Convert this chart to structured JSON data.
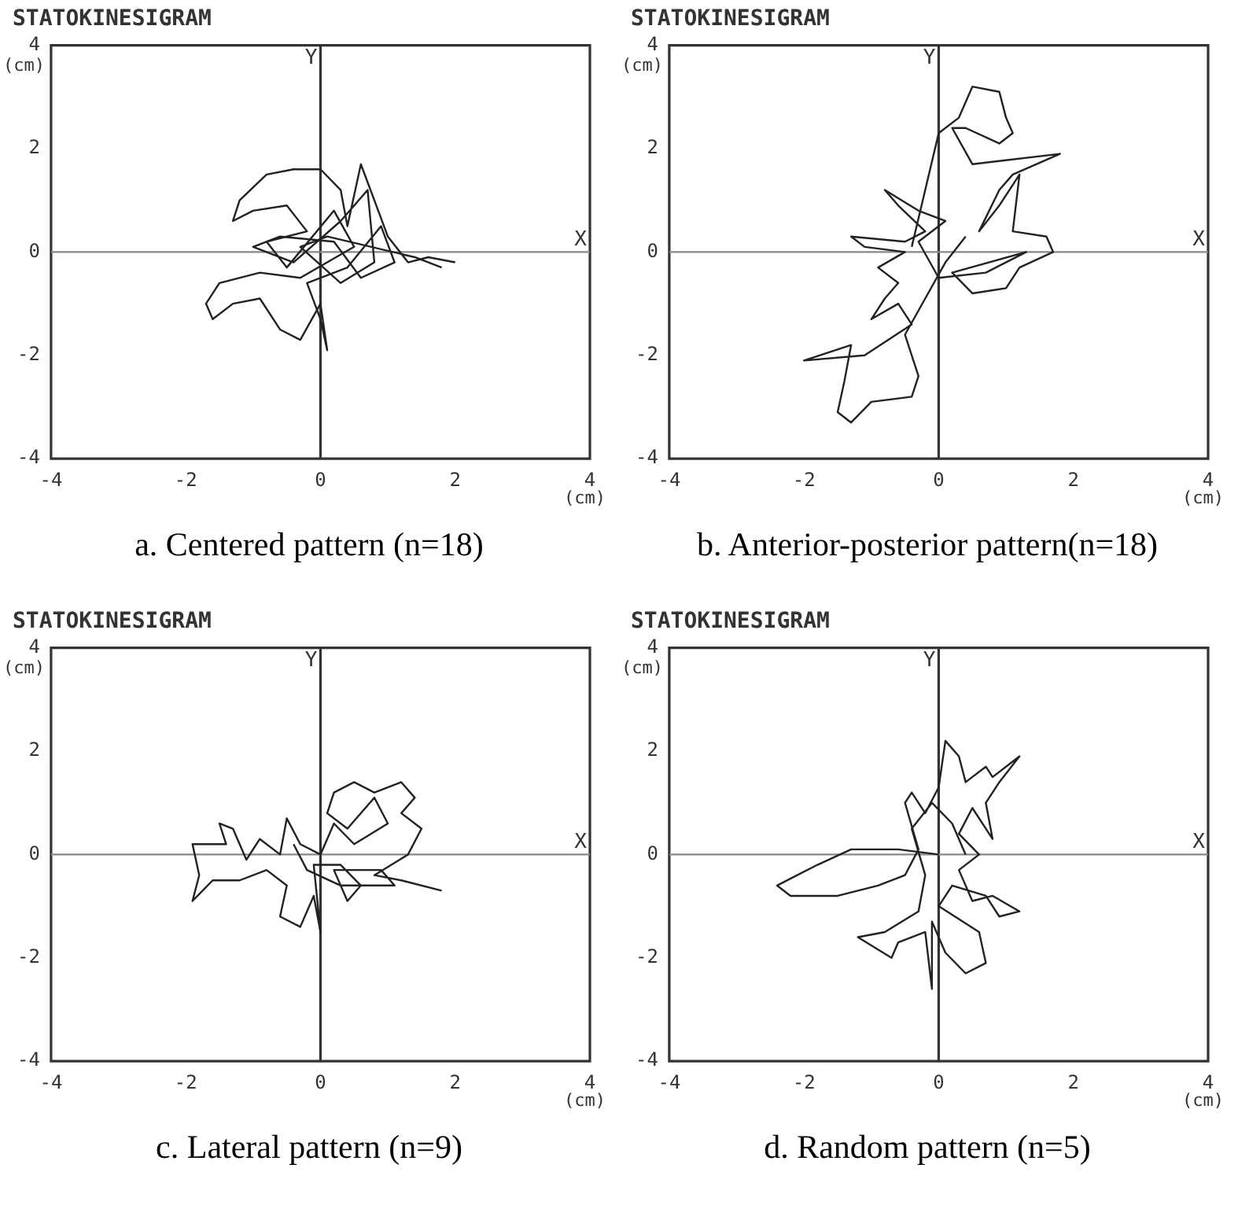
{
  "chart_data": [
    {
      "type": "line",
      "title": "STATOKINESIGRAM",
      "xlabel": "(cm)",
      "ylabel": "(cm)",
      "xlim": [
        -4,
        4
      ],
      "ylim": [
        -4,
        4
      ],
      "xticks": [
        -4,
        -2,
        0,
        2,
        4
      ],
      "yticks": [
        -4,
        -2,
        0,
        2,
        4
      ],
      "marker": "none",
      "legend": false,
      "ref_lines": [
        {
          "axis": "x",
          "value": 0,
          "label": "Y"
        },
        {
          "axis": "y",
          "value": 0,
          "label": "X"
        }
      ],
      "annotations": [
        "a. Centered pattern (n=18)"
      ],
      "series": [
        {
          "color": "#222222",
          "x": [
            2.0,
            1.6,
            1.3,
            1.0,
            0.6,
            0.4,
            0.3,
            0.0,
            -0.4,
            -0.8,
            -1.2,
            -1.3,
            -1.0,
            -0.5,
            -0.2,
            -0.8,
            -0.5,
            0.2,
            0.5,
            -0.3,
            -0.9,
            -1.5,
            -1.7,
            -1.6,
            -1.3,
            -0.9,
            -0.6,
            -0.3,
            0.0,
            0.1,
            0.0,
            -0.2,
            0.4,
            0.9,
            1.1,
            0.6,
            0.2,
            -0.6,
            -1.0,
            -0.4,
            0.3,
            0.7,
            0.8,
            0.3,
            -0.3,
            0.1,
            1.4,
            1.8
          ],
          "values": [
            -0.2,
            -0.1,
            -0.2,
            0.3,
            1.7,
            0.5,
            1.2,
            1.6,
            1.6,
            1.5,
            1.0,
            0.6,
            0.8,
            0.9,
            0.4,
            0.2,
            -0.3,
            0.8,
            0.1,
            -0.5,
            -0.4,
            -0.6,
            -1.0,
            -1.3,
            -1.0,
            -0.9,
            -1.5,
            -1.7,
            -1.0,
            -1.9,
            -1.3,
            -0.6,
            -0.3,
            0.5,
            -0.2,
            -0.5,
            0.2,
            0.3,
            0.1,
            -0.2,
            0.6,
            1.2,
            -0.2,
            -0.6,
            0.1,
            0.3,
            -0.1,
            -0.3
          ]
        }
      ]
    },
    {
      "type": "line",
      "title": "STATOKINESIGRAM",
      "xlabel": "(cm)",
      "ylabel": "(cm)",
      "xlim": [
        -4,
        4
      ],
      "ylim": [
        -4,
        4
      ],
      "xticks": [
        -4,
        -2,
        0,
        2,
        4
      ],
      "yticks": [
        -4,
        -2,
        0,
        2,
        4
      ],
      "marker": "none",
      "legend": false,
      "ref_lines": [
        {
          "axis": "x",
          "value": 0,
          "label": "Y"
        },
        {
          "axis": "y",
          "value": 0,
          "label": "X"
        }
      ],
      "annotations": [
        "b. Anterior-posterior pattern(n=18)"
      ],
      "series": [
        {
          "color": "#222222",
          "x": [
            -0.4,
            0.0,
            0.3,
            0.5,
            0.9,
            1.0,
            1.1,
            0.9,
            0.4,
            0.2,
            0.5,
            1.8,
            1.1,
            0.9,
            0.6,
            0.9,
            1.2,
            1.1,
            1.6,
            1.7,
            1.2,
            1.0,
            0.5,
            0.2,
            1.3,
            0.7,
            0.0,
            -0.3,
            0.1,
            -0.3,
            -0.8,
            -0.6,
            -0.2,
            -0.5,
            -1.3,
            -1.1,
            -0.5,
            -0.9,
            -0.6,
            -0.8,
            -1.0,
            -0.6,
            -0.4,
            -1.1,
            -2.0,
            -1.3,
            -1.4,
            -1.5,
            -1.3,
            -1.0,
            -0.4,
            -0.3,
            -0.5,
            -0.2,
            0.1,
            0.4
          ],
          "values": [
            0.1,
            2.3,
            2.6,
            3.2,
            3.1,
            2.6,
            2.3,
            2.1,
            2.4,
            2.4,
            1.7,
            1.9,
            1.5,
            1.2,
            0.4,
            0.9,
            1.5,
            0.4,
            0.3,
            0.0,
            -0.3,
            -0.7,
            -0.8,
            -0.4,
            0.0,
            -0.4,
            -0.5,
            0.2,
            0.6,
            0.8,
            1.2,
            0.9,
            0.4,
            0.2,
            0.3,
            0.1,
            0.0,
            -0.3,
            -0.6,
            -0.9,
            -1.3,
            -1.0,
            -1.4,
            -2.0,
            -2.1,
            -1.8,
            -2.5,
            -3.1,
            -3.3,
            -2.9,
            -2.8,
            -2.4,
            -1.6,
            -0.9,
            -0.2,
            0.3
          ]
        }
      ]
    },
    {
      "type": "line",
      "title": "STATOKINESIGRAM",
      "xlabel": "(cm)",
      "ylabel": "(cm)",
      "xlim": [
        -4,
        4
      ],
      "ylim": [
        -4,
        4
      ],
      "xticks": [
        -4,
        -2,
        0,
        2,
        4
      ],
      "yticks": [
        -4,
        -2,
        0,
        2,
        4
      ],
      "marker": "none",
      "legend": false,
      "ref_lines": [
        {
          "axis": "x",
          "value": 0,
          "label": "Y"
        },
        {
          "axis": "y",
          "value": 0,
          "label": "X"
        }
      ],
      "annotations": [
        "c. Lateral pattern (n=9)"
      ],
      "series": [
        {
          "color": "#222222",
          "x": [
            1.8,
            1.2,
            0.8,
            1.3,
            1.5,
            1.2,
            1.4,
            1.2,
            0.8,
            0.5,
            0.2,
            0.1,
            0.4,
            0.8,
            1.0,
            0.5,
            0.2,
            0.0,
            -0.3,
            -0.5,
            -0.6,
            -0.9,
            -1.1,
            -1.3,
            -1.5,
            -1.4,
            -1.9,
            -1.8,
            -1.9,
            -1.6,
            -1.2,
            -0.8,
            -0.5,
            -0.6,
            -0.3,
            -0.1,
            0.0,
            -0.1,
            0.3,
            0.6,
            0.4,
            0.2,
            0.9,
            1.1,
            0.3,
            -0.2,
            -0.4
          ],
          "values": [
            -0.7,
            -0.5,
            -0.4,
            0.0,
            0.5,
            0.8,
            1.1,
            1.4,
            1.2,
            1.4,
            1.2,
            0.8,
            0.5,
            1.1,
            0.6,
            0.2,
            0.6,
            0.0,
            0.2,
            0.7,
            0.0,
            0.3,
            -0.1,
            0.5,
            0.6,
            0.2,
            0.2,
            -0.4,
            -0.9,
            -0.5,
            -0.5,
            -0.3,
            -0.6,
            -1.2,
            -1.4,
            -0.8,
            -1.5,
            -0.2,
            -0.2,
            -0.6,
            -0.9,
            -0.3,
            -0.3,
            -0.6,
            -0.6,
            -0.3,
            0.2
          ]
        }
      ]
    },
    {
      "type": "line",
      "title": "STATOKINESIGRAM",
      "xlabel": "(cm)",
      "ylabel": "(cm)",
      "xlim": [
        -4,
        4
      ],
      "ylim": [
        -4,
        4
      ],
      "xticks": [
        -4,
        -2,
        0,
        2,
        4
      ],
      "yticks": [
        -4,
        -2,
        0,
        2,
        4
      ],
      "marker": "none",
      "legend": false,
      "ref_lines": [
        {
          "axis": "x",
          "value": 0,
          "label": "Y"
        },
        {
          "axis": "y",
          "value": 0,
          "label": "X"
        }
      ],
      "annotations": [
        "d. Random pattern (n=5)"
      ],
      "series": [
        {
          "color": "#222222",
          "x": [
            0.0,
            -0.6,
            -1.3,
            -1.8,
            -2.4,
            -2.2,
            -1.5,
            -0.9,
            -0.5,
            -0.3,
            -0.5,
            -0.4,
            -0.2,
            0.0,
            0.1,
            0.3,
            0.4,
            0.7,
            0.8,
            1.2,
            0.9,
            0.7,
            0.8,
            0.5,
            0.3,
            0.6,
            0.3,
            0.5,
            0.8,
            1.2,
            0.9,
            0.7,
            0.2,
            0.0,
            0.6,
            0.7,
            0.4,
            0.1,
            -0.1,
            -0.1,
            -0.2,
            -0.6,
            -0.7,
            -1.2,
            -0.8,
            -0.3,
            -0.2,
            -0.4,
            -0.1,
            0.2,
            0.4
          ],
          "values": [
            0.0,
            0.1,
            0.1,
            -0.2,
            -0.6,
            -0.8,
            -0.8,
            -0.6,
            -0.4,
            0.1,
            1.0,
            1.2,
            0.8,
            1.3,
            2.2,
            1.9,
            1.4,
            1.7,
            1.5,
            1.9,
            1.4,
            1.0,
            0.3,
            0.9,
            0.4,
            0.0,
            -0.3,
            -0.9,
            -0.8,
            -1.1,
            -1.2,
            -0.8,
            -0.6,
            -1.0,
            -1.5,
            -2.1,
            -2.3,
            -1.9,
            -1.3,
            -2.6,
            -1.5,
            -1.7,
            -2.0,
            -1.6,
            -1.5,
            -1.1,
            -0.4,
            0.5,
            1.0,
            0.6,
            0.0
          ]
        }
      ]
    }
  ]
}
